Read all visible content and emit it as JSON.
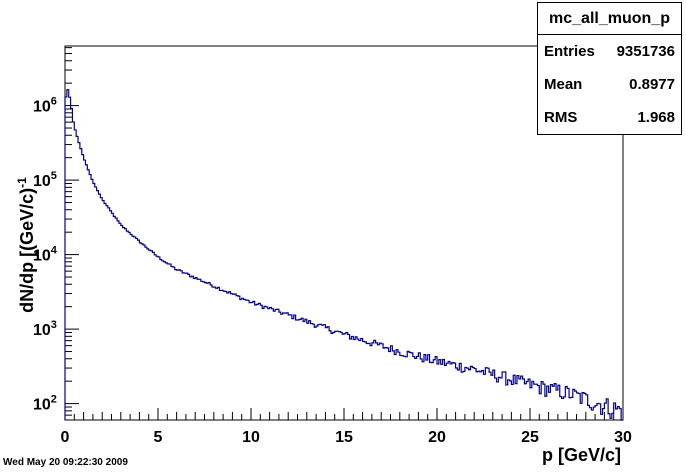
{
  "footer": {
    "timestamp": "Wed May 20 09:22:30 2009"
  },
  "stats": {
    "title": "mc_all_muon_p",
    "rows": [
      {
        "label": "Entries",
        "value": "9351736"
      },
      {
        "label": "Mean",
        "value": "0.8977"
      },
      {
        "label": "RMS",
        "value": "1.968"
      }
    ]
  },
  "chart_data": {
    "type": "line",
    "style": "histogram-step",
    "xlabel": "p [GeV/c]",
    "ylabel": "dN/dp [(GeV/c)",
    "ylabel_superscript": "-1",
    "xlim": [
      0,
      30
    ],
    "ylim_log10": [
      1.78,
      6.8
    ],
    "yscale": "log",
    "grid": false,
    "line_color": "#00008b",
    "x_ticks": [
      "0",
      "5",
      "10",
      "15",
      "20",
      "25",
      "30"
    ],
    "y_ticks": [
      {
        "base": "10",
        "exp": "2"
      },
      {
        "base": "10",
        "exp": "3"
      },
      {
        "base": "10",
        "exp": "4"
      },
      {
        "base": "10",
        "exp": "5"
      },
      {
        "base": "10",
        "exp": "6"
      }
    ],
    "bin_width_gev": 0.1,
    "anchors_x": [
      0,
      0.1,
      0.2,
      0.3,
      0.4,
      0.5,
      0.7,
      1.0,
      1.5,
      2.0,
      3.0,
      4.0,
      5.0,
      6.0,
      8.0,
      10.0,
      12.0,
      15.0,
      18.0,
      20.0,
      22.0,
      25.0,
      27.0,
      29.0,
      30.0
    ],
    "anchors_y": [
      900000,
      1900000,
      1400000,
      1200000,
      700000,
      520000,
      350000,
      200000,
      95000,
      55000,
      25000,
      15000,
      9300,
      6300,
      3800,
      2300,
      1550,
      850,
      500,
      370,
      290,
      180,
      140,
      95,
      80
    ]
  }
}
